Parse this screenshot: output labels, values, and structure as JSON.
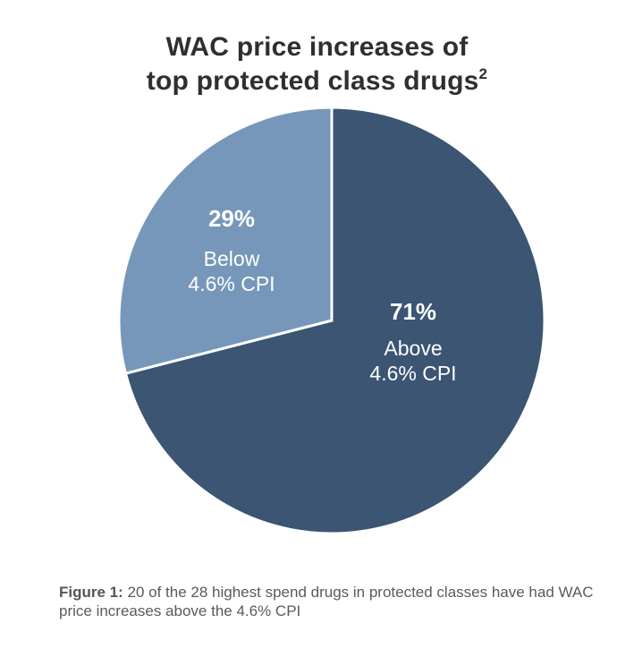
{
  "chart_data": {
    "type": "pie",
    "title_line1": "WAC price increases of",
    "title_line2": "top protected class drugs",
    "title_superscript": "2",
    "slices": [
      {
        "percent": "71%",
        "value": 71,
        "label_line1": "Above",
        "label_line2": "4.6% CPI",
        "color": "#3b5573"
      },
      {
        "percent": "29%",
        "value": 29,
        "label_line1": "Below",
        "label_line2": "4.6% CPI",
        "color": "#7697b9"
      }
    ]
  },
  "caption": {
    "label": "Figure 1:",
    "text": " 20 of the 28 highest spend drugs in protected classes have had WAC price increases above the 4.6% CPI"
  }
}
